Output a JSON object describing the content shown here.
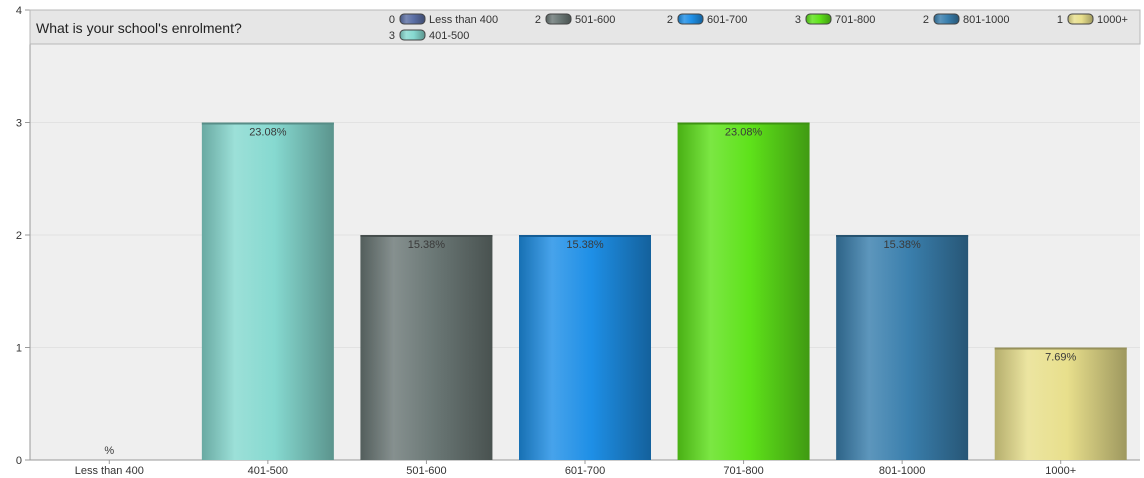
{
  "chart_data": {
    "type": "bar",
    "title": "What is your school's enrolment?",
    "xlabel": "",
    "ylabel": "",
    "ylim": [
      0,
      4
    ],
    "yticks": [
      "0",
      "1",
      "2",
      "3",
      "4"
    ],
    "grid": false,
    "legend_position": "top",
    "categories": [
      "Less than 400",
      "401-500",
      "501-600",
      "601-700",
      "701-800",
      "801-1000",
      "1000+"
    ],
    "values": [
      0,
      3,
      2,
      2,
      3,
      2,
      1
    ],
    "data_labels": [
      "%",
      "23.08%",
      "15.38%",
      "15.38%",
      "23.08%",
      "15.38%",
      "7.69%"
    ],
    "colors": [
      "#5b6fa5",
      "#86d9d0",
      "#6b7876",
      "#1e8fe6",
      "#5ee21a",
      "#3a7fad",
      "#e8df8c"
    ],
    "legend": [
      {
        "count": "0",
        "label": "Less than 400"
      },
      {
        "count": "2",
        "label": "501-600"
      },
      {
        "count": "2",
        "label": "601-700"
      },
      {
        "count": "3",
        "label": "701-800"
      },
      {
        "count": "2",
        "label": "801-1000"
      },
      {
        "count": "1",
        "label": "1000+"
      },
      {
        "count": "3",
        "label": "401-500"
      }
    ],
    "legend_colors": [
      "#5b6fa5",
      "#6b7876",
      "#1e8fe6",
      "#5ee21a",
      "#3a7fad",
      "#e8df8c",
      "#86d9d0"
    ]
  }
}
